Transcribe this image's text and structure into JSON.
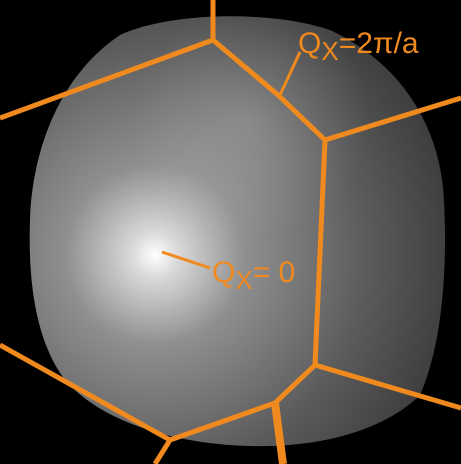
{
  "annotations": [
    {
      "main": "Q",
      "sub": "X",
      "rest": "=2π/a"
    },
    {
      "main": "Q",
      "sub": "X",
      "rest": "= 0"
    }
  ]
}
